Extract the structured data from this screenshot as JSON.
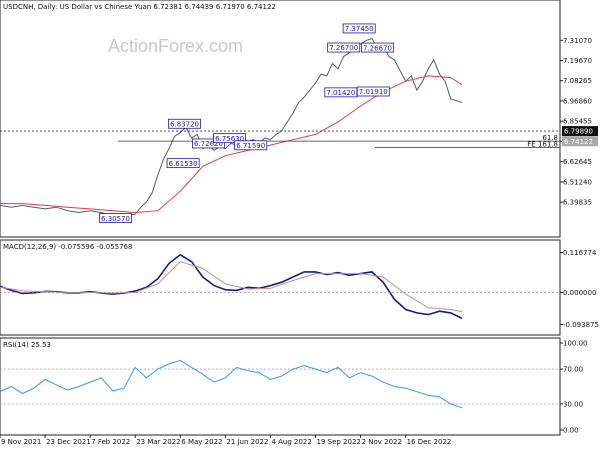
{
  "chart_data": [
    {
      "type": "line",
      "panel": "price",
      "title": "USDCNH, Daily:  US Dollar vs Chinese Yuan  6.72381 6.74439 6.71970 6.74122",
      "watermark": "ActionForex.com",
      "ylim": [
        6.23,
        7.47
      ],
      "y_ticks": [
        "7.31070",
        "7.19670",
        "7.08265",
        "6.96860",
        "6.85455",
        "6.74050",
        "6.62645",
        "6.51240",
        "6.39835"
      ],
      "y_tick_values": [
        7.3107,
        7.1967,
        7.08265,
        6.9686,
        6.85455,
        6.7405,
        6.62645,
        6.5124,
        6.39835
      ],
      "x_ticks": [
        "9 Nov 2021",
        "23 Dec 2021",
        "7 Feb 2022",
        "23 Mar 2022",
        "6 May 2022",
        "21 Jun 2022",
        "4 Aug 2022",
        "19 Sep 2022",
        "2 Nov 2022",
        "16 Dec 2022"
      ],
      "x_tick_values": [
        0,
        32,
        64,
        96,
        128,
        160,
        192,
        224,
        256,
        288
      ],
      "x_range": [
        0,
        328
      ],
      "series": [
        {
          "color": "#4a5f73",
          "x": [
            0,
            8,
            16,
            24,
            32,
            40,
            48,
            56,
            64,
            72,
            80,
            88,
            96,
            100,
            104,
            108,
            112,
            116,
            120,
            124,
            128,
            132,
            136,
            140,
            144,
            148,
            152,
            156,
            160,
            164,
            168,
            172,
            176,
            180,
            184,
            188,
            192,
            196,
            200,
            204,
            208,
            212,
            216,
            220,
            224,
            228,
            232,
            236,
            240,
            244,
            248,
            252,
            256,
            260,
            264,
            268,
            272,
            276,
            280,
            284,
            288,
            292,
            296,
            300,
            304,
            308,
            312,
            316,
            320,
            324,
            328
          ],
          "values": [
            6.38,
            6.37,
            6.38,
            6.37,
            6.36,
            6.37,
            6.35,
            6.34,
            6.35,
            6.34,
            6.32,
            6.32,
            6.33,
            6.37,
            6.4,
            6.45,
            6.55,
            6.64,
            6.7,
            6.77,
            6.79,
            6.82,
            6.76,
            6.78,
            6.7,
            6.72,
            6.69,
            6.71,
            6.7,
            6.73,
            6.72,
            6.76,
            6.74,
            6.75,
            6.73,
            6.76,
            6.75,
            6.78,
            6.8,
            6.85,
            6.9,
            6.96,
            6.99,
            7.03,
            7.07,
            7.12,
            7.11,
            7.18,
            7.15,
            7.22,
            7.24,
            7.26,
            7.29,
            7.31,
            7.32,
            7.27,
            7.28,
            7.22,
            7.2,
            7.14,
            7.08,
            7.11,
            7.03,
            7.08,
            7.15,
            7.2,
            7.12,
            7.08,
            6.98,
            6.97,
            6.96
          ]
        },
        {
          "color": "#e23b3b",
          "x": [
            0,
            16,
            32,
            48,
            64,
            80,
            96,
            112,
            128,
            144,
            160,
            176,
            192,
            208,
            224,
            240,
            256,
            272,
            288,
            304,
            320,
            328
          ],
          "values": [
            6.39,
            6.39,
            6.38,
            6.37,
            6.36,
            6.35,
            6.34,
            6.35,
            6.46,
            6.6,
            6.66,
            6.69,
            6.72,
            6.75,
            6.78,
            6.85,
            6.94,
            7.02,
            7.08,
            7.11,
            7.1,
            7.06
          ]
        }
      ],
      "levels": [
        {
          "label": "6.79890",
          "value": 6.7989,
          "style": "dashed"
        },
        {
          "label": "6.74122",
          "value": 6.74122,
          "style": "current"
        },
        {
          "label": "61.8",
          "value": 6.7423,
          "style": "solid"
        },
        {
          "label": "FE 161.8",
          "value": 6.7055,
          "style": "solid"
        }
      ],
      "annotations": [
        {
          "text": "6.30570",
          "x": 82,
          "y": 6.3057
        },
        {
          "text": "6.61530",
          "x": 130,
          "y": 6.6153
        },
        {
          "text": "6.83720",
          "x": 131,
          "y": 6.8372
        },
        {
          "text": "6.72620",
          "x": 148,
          "y": 6.7262
        },
        {
          "text": "6.75630",
          "x": 163,
          "y": 6.7563
        },
        {
          "text": "6.71590",
          "x": 178,
          "y": 6.7159
        },
        {
          "text": "7.26700",
          "x": 244,
          "y": 7.267
        },
        {
          "text": "7.37450",
          "x": 255,
          "y": 7.3745
        },
        {
          "text": "7.26670",
          "x": 268,
          "y": 7.2667
        },
        {
          "text": "7.01420",
          "x": 242,
          "y": 7.0142
        },
        {
          "text": "7.01910",
          "x": 265,
          "y": 7.0191
        }
      ]
    },
    {
      "type": "line",
      "panel": "macd",
      "title": "MACD(12,26,9) -0.075596 -0.055768",
      "ylim": [
        -0.11,
        0.13
      ],
      "y_ticks": [
        "0.116774",
        "0.000000",
        "-0.093875"
      ],
      "y_tick_values": [
        0.116774,
        0.0,
        -0.093875
      ],
      "series": [
        {
          "color": "#0d1e8a",
          "x": [
            0,
            8,
            16,
            24,
            32,
            40,
            48,
            56,
            64,
            72,
            80,
            88,
            96,
            104,
            112,
            120,
            128,
            136,
            144,
            152,
            160,
            168,
            176,
            184,
            192,
            200,
            208,
            216,
            224,
            232,
            240,
            248,
            256,
            264,
            272,
            280,
            288,
            296,
            304,
            312,
            320,
            328
          ],
          "values": [
            0.018,
            0.006,
            -0.003,
            -0.001,
            0.003,
            0.002,
            -0.001,
            -0.001,
            0.002,
            -0.002,
            -0.005,
            -0.002,
            0.004,
            0.015,
            0.04,
            0.085,
            0.11,
            0.09,
            0.045,
            0.02,
            0.008,
            0.006,
            0.015,
            0.012,
            0.02,
            0.03,
            0.045,
            0.06,
            0.06,
            0.052,
            0.058,
            0.05,
            0.055,
            0.06,
            0.03,
            -0.02,
            -0.05,
            -0.06,
            -0.065,
            -0.055,
            -0.06,
            -0.076
          ]
        },
        {
          "color": "#c98a8a",
          "x": [
            0,
            16,
            32,
            48,
            64,
            80,
            96,
            112,
            128,
            144,
            160,
            176,
            192,
            208,
            224,
            240,
            256,
            272,
            288,
            304,
            320,
            328
          ],
          "values": [
            0.015,
            0.005,
            0.002,
            0.0,
            0.0,
            -0.002,
            0.0,
            0.025,
            0.09,
            0.07,
            0.025,
            0.01,
            0.012,
            0.035,
            0.055,
            0.055,
            0.055,
            0.045,
            -0.005,
            -0.045,
            -0.05,
            -0.056
          ]
        }
      ]
    },
    {
      "type": "line",
      "panel": "rsi",
      "title": "RSI(14) 25.53",
      "ylim": [
        0,
        100
      ],
      "y_ticks": [
        "100.00",
        "70.00",
        "30.00",
        "0.00"
      ],
      "y_tick_values": [
        100,
        70,
        30,
        0
      ],
      "series": [
        {
          "color": "#3399ee",
          "x": [
            0,
            8,
            16,
            24,
            32,
            40,
            48,
            56,
            64,
            72,
            80,
            88,
            96,
            104,
            112,
            120,
            128,
            136,
            144,
            152,
            160,
            168,
            176,
            184,
            192,
            200,
            208,
            216,
            224,
            232,
            240,
            248,
            256,
            264,
            272,
            280,
            288,
            296,
            304,
            312,
            320,
            328
          ],
          "values": [
            44,
            50,
            42,
            48,
            58,
            52,
            46,
            50,
            55,
            60,
            45,
            48,
            72,
            60,
            70,
            76,
            80,
            72,
            64,
            55,
            60,
            72,
            68,
            66,
            58,
            62,
            70,
            74,
            70,
            66,
            72,
            60,
            66,
            62,
            55,
            50,
            48,
            44,
            40,
            38,
            30,
            25.53
          ]
        }
      ]
    }
  ]
}
